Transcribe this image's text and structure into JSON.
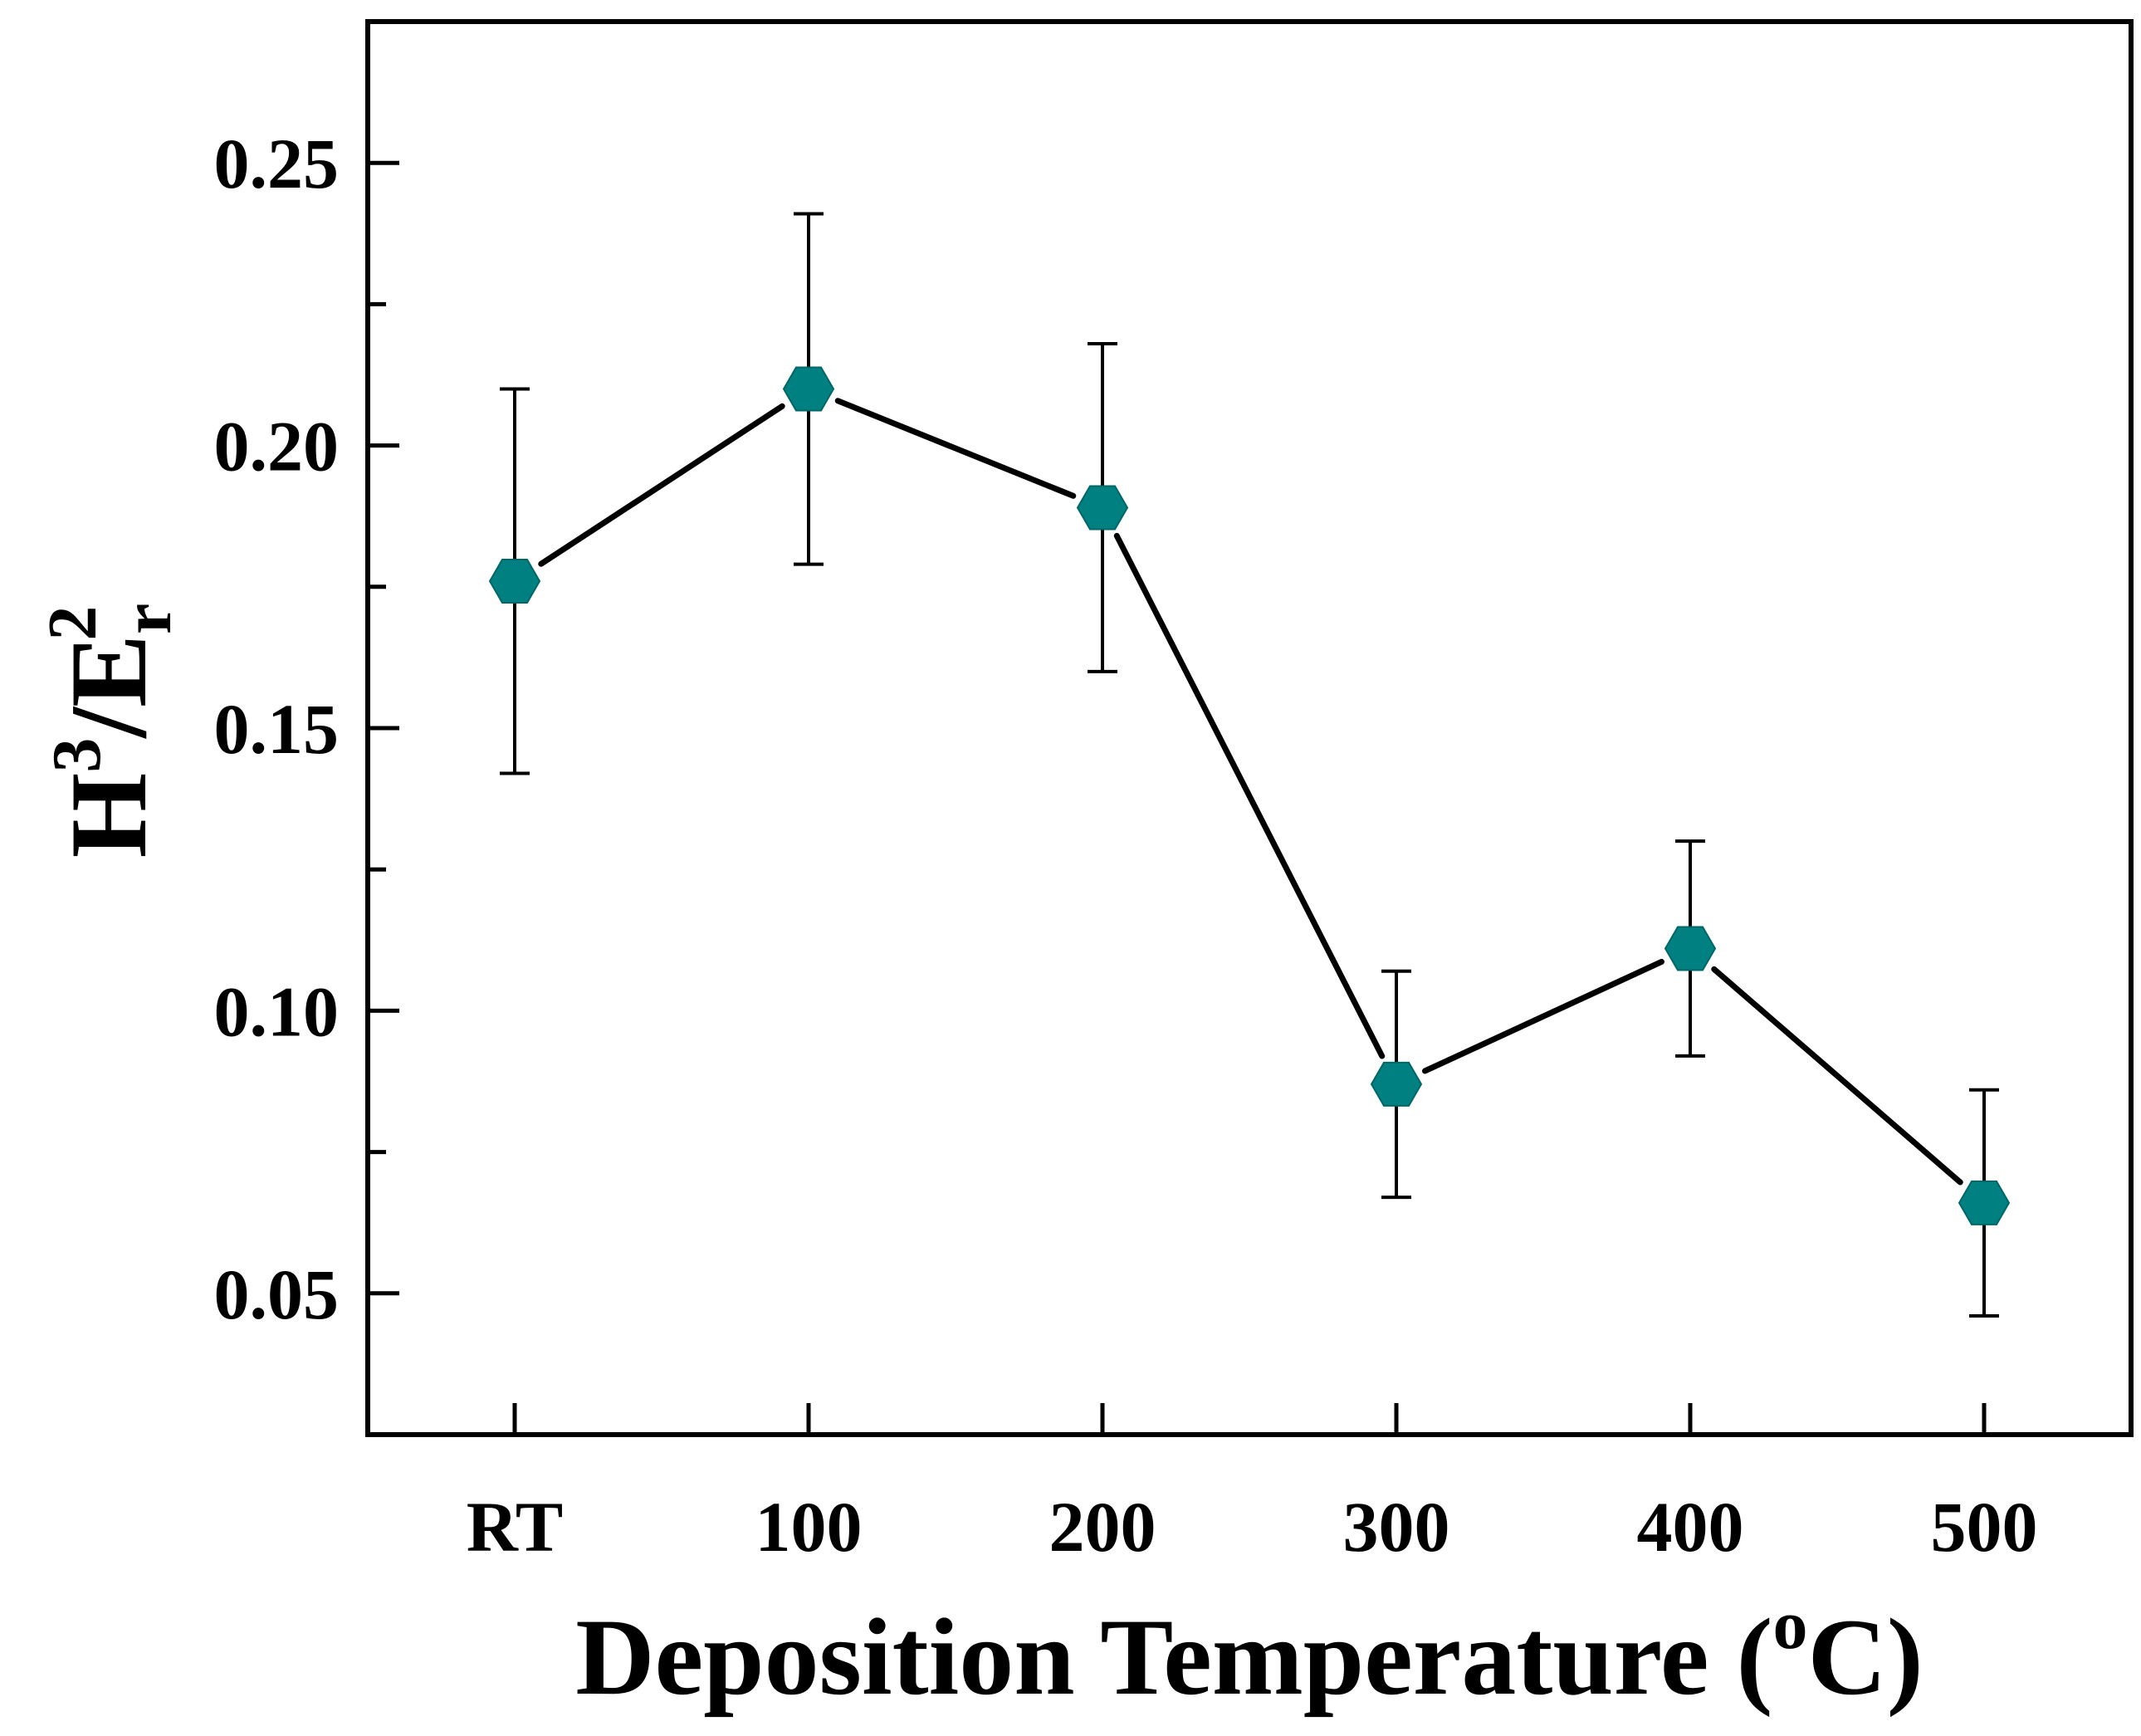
{
  "chart_data": {
    "type": "line",
    "title": "",
    "xlabel": {
      "main": "Deposition Temperature (",
      "sup": "o",
      "tail": "C)"
    },
    "ylabel": {
      "part1": "H",
      "sup1": "3",
      "part2": "/E",
      "sub2": "r",
      "sup2": "2"
    },
    "categories": [
      "RT",
      "100",
      "200",
      "300",
      "400",
      "500"
    ],
    "series": [
      {
        "name": "H3/Er2",
        "values": [
          0.176,
          0.21,
          0.189,
          0.087,
          0.111,
          0.066
        ],
        "errors": [
          0.034,
          0.031,
          0.029,
          0.02,
          0.019,
          0.02
        ]
      }
    ],
    "ylim": [
      0.025,
      0.275
    ],
    "yticks": [
      0.05,
      0.1,
      0.15,
      0.2,
      0.25
    ],
    "ytick_labels": [
      "0.05",
      "0.10",
      "0.15",
      "0.20",
      "0.25"
    ],
    "grid": false,
    "legend": "none",
    "marker": "hexagon",
    "colors": {
      "marker": "#008080",
      "line": "#000000",
      "axis": "#000000"
    }
  }
}
